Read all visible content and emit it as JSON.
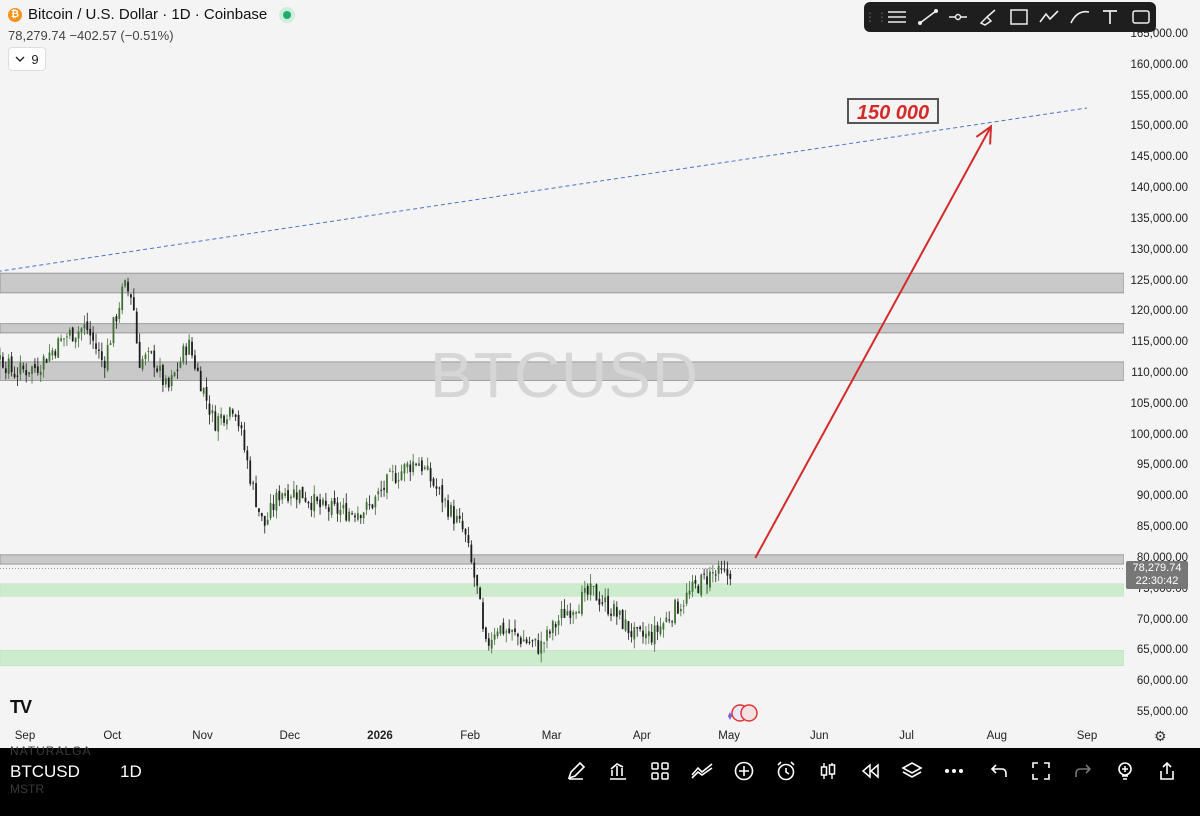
{
  "header": {
    "symbol_title": "Bitcoin / U.S. Dollar · 1D · Coinbase",
    "quote": "78,279.74 −402.57 (−0.51%)",
    "indicator_count": "9"
  },
  "toolbar": {
    "icons": [
      "horizontal-lines-icon",
      "trend-line-icon",
      "horizontal-ray-icon",
      "brush-icon",
      "rectangle-icon",
      "path-icon",
      "curve-icon",
      "text-icon",
      "frame-icon"
    ]
  },
  "watermark": "BTCUSD",
  "annotation": {
    "target": "150 000"
  },
  "price_tag": {
    "price": "78,279.74",
    "countdown": "22:30:42"
  },
  "y_axis": [
    "165,000.00",
    "160,000.00",
    "155,000.00",
    "150,000.00",
    "145,000.00",
    "140,000.00",
    "135,000.00",
    "130,000.00",
    "125,000.00",
    "120,000.00",
    "115,000.00",
    "110,000.00",
    "105,000.00",
    "100,000.00",
    "95,000.00",
    "90,000.00",
    "85,000.00",
    "80,000.00",
    "75,000.00",
    "70,000.00",
    "65,000.00",
    "60,000.00",
    "55,000.00"
  ],
  "x_axis": [
    {
      "label": "Sep",
      "bold": false
    },
    {
      "label": "Oct",
      "bold": false
    },
    {
      "label": "Nov",
      "bold": false
    },
    {
      "label": "Dec",
      "bold": false
    },
    {
      "label": "2026",
      "bold": true
    },
    {
      "label": "Feb",
      "bold": false
    },
    {
      "label": "Mar",
      "bold": false
    },
    {
      "label": "Apr",
      "bold": false
    },
    {
      "label": "May",
      "bold": false
    },
    {
      "label": "Jun",
      "bold": false
    },
    {
      "label": "Jul",
      "bold": false
    },
    {
      "label": "Aug",
      "bold": false
    },
    {
      "label": "Sep",
      "bold": false
    }
  ],
  "bottom_bar": {
    "symbol": "BTCUSD",
    "timeframe": "1D",
    "watermark_top": "NATURALGA",
    "watermark_bottom": "MSTR",
    "icons": [
      "pencil-icon",
      "bar-chart-icon",
      "grid-icon",
      "compare-icon",
      "plus-circle-icon",
      "alarm-icon",
      "candles-icon",
      "replay-icon",
      "layers-icon",
      "more-icon"
    ],
    "right_icons": [
      "undo-icon",
      "fullscreen-icon",
      "redo-icon",
      "idea-icon",
      "share-icon"
    ]
  },
  "colors": {
    "up_candle": "#3f6f35",
    "down_candle": "#1c1c1c",
    "resistance_zone": "#c9c9c9",
    "support_zone": "#cdeccd",
    "trend_line": "#4a74c9",
    "target_arrow": "#d42a2a"
  },
  "chart_data": {
    "type": "candlestick",
    "symbol": "BTCUSD",
    "timeframe": "1D",
    "ylim": [
      53000,
      167000
    ],
    "y_ticks": [
      55000,
      60000,
      65000,
      70000,
      75000,
      80000,
      85000,
      90000,
      95000,
      100000,
      105000,
      110000,
      115000,
      120000,
      125000,
      130000,
      135000,
      140000,
      145000,
      150000,
      155000,
      160000,
      165000
    ],
    "x_ticks": [
      "Sep",
      "Oct",
      "Nov",
      "Dec",
      "2026",
      "Feb",
      "Mar",
      "Apr",
      "May",
      "Jun",
      "Jul",
      "Aug",
      "Sep"
    ],
    "last_price": 78279.74,
    "close_trend": [
      {
        "date": "2025-08-20",
        "price": 114500
      },
      {
        "date": "2025-08-28",
        "price": 110000
      },
      {
        "date": "2025-09-05",
        "price": 111000
      },
      {
        "date": "2025-09-15",
        "price": 116000
      },
      {
        "date": "2025-09-22",
        "price": 117500
      },
      {
        "date": "2025-09-28",
        "price": 111500
      },
      {
        "date": "2025-10-05",
        "price": 124000
      },
      {
        "date": "2025-10-08",
        "price": 122500
      },
      {
        "date": "2025-10-10",
        "price": 112000
      },
      {
        "date": "2025-10-15",
        "price": 112500
      },
      {
        "date": "2025-10-20",
        "price": 107000
      },
      {
        "date": "2025-10-27",
        "price": 115000
      },
      {
        "date": "2025-11-05",
        "price": 102000
      },
      {
        "date": "2025-11-12",
        "price": 105000
      },
      {
        "date": "2025-11-18",
        "price": 92000
      },
      {
        "date": "2025-11-22",
        "price": 85000
      },
      {
        "date": "2025-11-28",
        "price": 91000
      },
      {
        "date": "2025-12-05",
        "price": 90500
      },
      {
        "date": "2025-12-12",
        "price": 88000
      },
      {
        "date": "2025-12-20",
        "price": 87500
      },
      {
        "date": "2025-12-28",
        "price": 88000
      },
      {
        "date": "2026-01-05",
        "price": 93000
      },
      {
        "date": "2026-01-14",
        "price": 96000
      },
      {
        "date": "2026-01-22",
        "price": 90000
      },
      {
        "date": "2026-01-30",
        "price": 84000
      },
      {
        "date": "2026-02-04",
        "price": 73500
      },
      {
        "date": "2026-02-06",
        "price": 65000
      },
      {
        "date": "2026-02-10",
        "price": 69000
      },
      {
        "date": "2026-02-18",
        "price": 67000
      },
      {
        "date": "2026-02-25",
        "price": 65500
      },
      {
        "date": "2026-03-05",
        "price": 71000
      },
      {
        "date": "2026-03-15",
        "price": 74500
      },
      {
        "date": "2026-03-22",
        "price": 71500
      },
      {
        "date": "2026-03-30",
        "price": 67000
      },
      {
        "date": "2026-04-05",
        "price": 67500
      },
      {
        "date": "2026-04-12",
        "price": 71500
      },
      {
        "date": "2026-04-20",
        "price": 75500
      },
      {
        "date": "2026-04-25",
        "price": 77500
      },
      {
        "date": "2026-04-30",
        "price": 77000
      },
      {
        "date": "2026-05-02",
        "price": 78279.74
      }
    ],
    "zones": [
      {
        "kind": "resistance",
        "low": 123000,
        "high": 126200
      },
      {
        "kind": "resistance",
        "low": 116500,
        "high": 118000
      },
      {
        "kind": "resistance",
        "low": 108800,
        "high": 111800
      },
      {
        "kind": "resistance",
        "low": 79000,
        "high": 80500
      },
      {
        "kind": "support",
        "low": 73800,
        "high": 75800
      },
      {
        "kind": "support",
        "low": 62500,
        "high": 65000
      }
    ],
    "trend_line": [
      {
        "date": "2025-08-20",
        "price": 125800
      },
      {
        "date": "2026-09-01",
        "price": 153000
      }
    ],
    "target_arrow": {
      "from": {
        "date": "2026-05-10",
        "price": 80000
      },
      "to": {
        "date": "2026-07-30",
        "price": 150000
      },
      "label": "150 000"
    }
  }
}
